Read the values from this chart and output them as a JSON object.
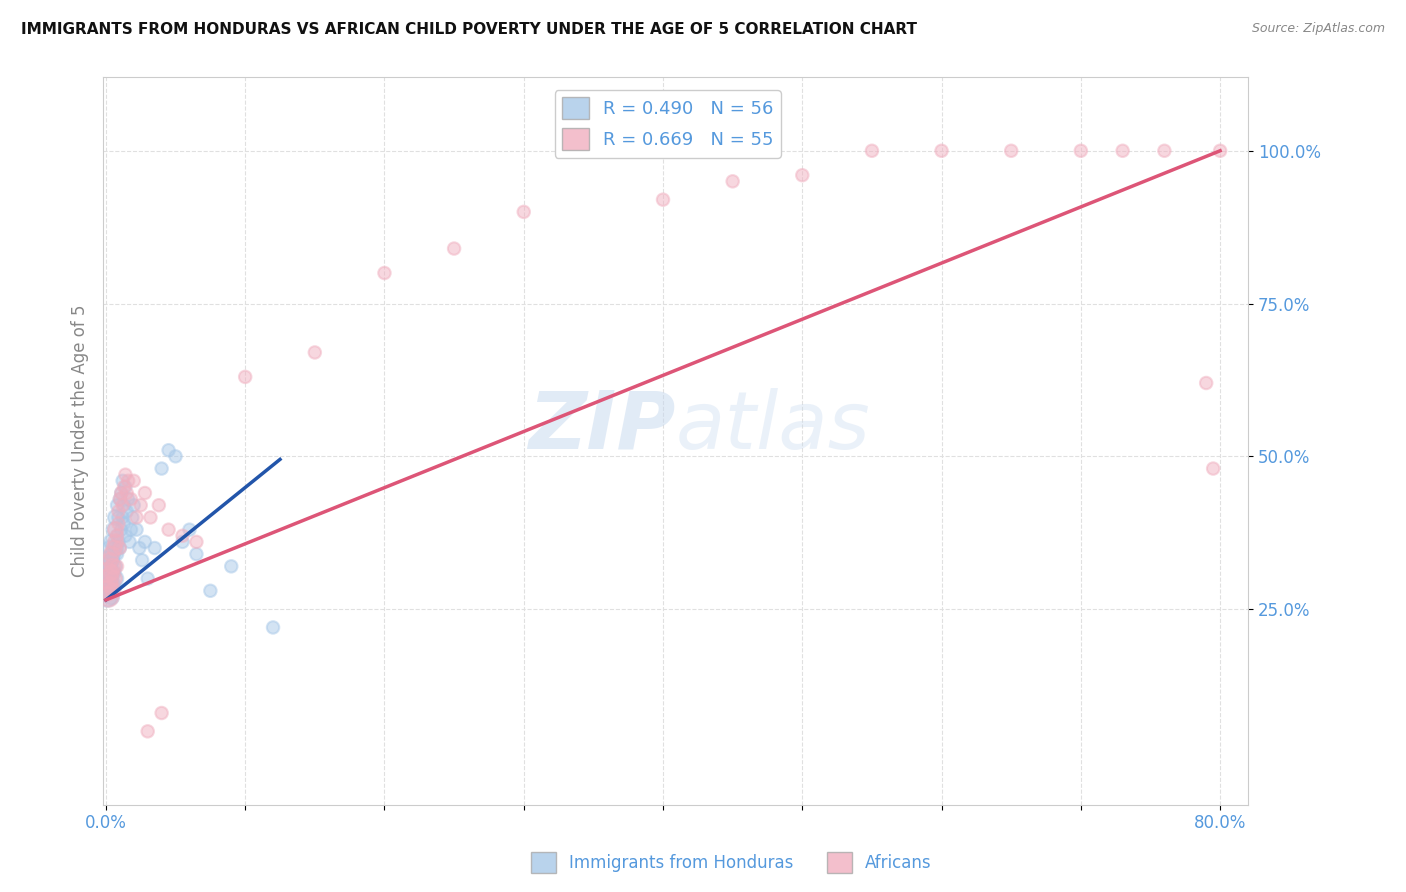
{
  "title": "IMMIGRANTS FROM HONDURAS VS AFRICAN CHILD POVERTY UNDER THE AGE OF 5 CORRELATION CHART",
  "source": "Source: ZipAtlas.com",
  "ylabel": "Child Poverty Under the Age of 5",
  "ytick_labels": [
    "25.0%",
    "50.0%",
    "75.0%",
    "100.0%"
  ],
  "ytick_values": [
    0.25,
    0.5,
    0.75,
    1.0
  ],
  "legend_series": [
    {
      "label": "R = 0.490   N = 56",
      "color": "#a8c8e8"
    },
    {
      "label": "R = 0.669   N = 55",
      "color": "#f0b0c0"
    }
  ],
  "legend_bottom": [
    {
      "label": "Immigrants from Honduras",
      "color": "#a8c8e8"
    },
    {
      "label": "Africans",
      "color": "#f0b0c0"
    }
  ],
  "watermark_zip": "ZIP",
  "watermark_atlas": "atlas",
  "blue_scatter_x": [
    0.001,
    0.001,
    0.001,
    0.002,
    0.002,
    0.002,
    0.003,
    0.003,
    0.003,
    0.004,
    0.004,
    0.004,
    0.005,
    0.005,
    0.005,
    0.006,
    0.006,
    0.007,
    0.007,
    0.007,
    0.008,
    0.008,
    0.008,
    0.009,
    0.009,
    0.01,
    0.01,
    0.011,
    0.011,
    0.012,
    0.012,
    0.013,
    0.013,
    0.014,
    0.014,
    0.015,
    0.016,
    0.017,
    0.018,
    0.019,
    0.02,
    0.022,
    0.024,
    0.026,
    0.028,
    0.03,
    0.035,
    0.04,
    0.045,
    0.05,
    0.055,
    0.06,
    0.065,
    0.075,
    0.09,
    0.12
  ],
  "blue_scatter_y": [
    0.3,
    0.32,
    0.27,
    0.29,
    0.31,
    0.33,
    0.28,
    0.3,
    0.35,
    0.27,
    0.33,
    0.36,
    0.29,
    0.31,
    0.34,
    0.32,
    0.38,
    0.3,
    0.35,
    0.4,
    0.34,
    0.37,
    0.42,
    0.36,
    0.4,
    0.35,
    0.43,
    0.38,
    0.44,
    0.4,
    0.46,
    0.39,
    0.42,
    0.37,
    0.45,
    0.41,
    0.43,
    0.36,
    0.38,
    0.4,
    0.42,
    0.38,
    0.35,
    0.33,
    0.36,
    0.3,
    0.35,
    0.48,
    0.51,
    0.5,
    0.36,
    0.38,
    0.34,
    0.28,
    0.32,
    0.22
  ],
  "pink_scatter_x": [
    0.001,
    0.001,
    0.002,
    0.002,
    0.003,
    0.003,
    0.004,
    0.004,
    0.005,
    0.005,
    0.006,
    0.006,
    0.007,
    0.007,
    0.008,
    0.008,
    0.009,
    0.009,
    0.01,
    0.01,
    0.011,
    0.012,
    0.013,
    0.014,
    0.015,
    0.016,
    0.018,
    0.02,
    0.022,
    0.025,
    0.028,
    0.032,
    0.038,
    0.045,
    0.055,
    0.065,
    0.1,
    0.15,
    0.2,
    0.25,
    0.3,
    0.4,
    0.45,
    0.5,
    0.55,
    0.6,
    0.65,
    0.7,
    0.73,
    0.76,
    0.79,
    0.795,
    0.8,
    0.03,
    0.04
  ],
  "pink_scatter_y": [
    0.28,
    0.31,
    0.27,
    0.3,
    0.29,
    0.33,
    0.31,
    0.34,
    0.28,
    0.32,
    0.35,
    0.3,
    0.36,
    0.38,
    0.32,
    0.37,
    0.39,
    0.41,
    0.35,
    0.43,
    0.44,
    0.42,
    0.45,
    0.47,
    0.44,
    0.46,
    0.43,
    0.46,
    0.4,
    0.42,
    0.44,
    0.4,
    0.42,
    0.38,
    0.37,
    0.36,
    0.63,
    0.67,
    0.8,
    0.84,
    0.9,
    0.92,
    0.95,
    0.96,
    1.0,
    1.0,
    1.0,
    1.0,
    1.0,
    1.0,
    0.62,
    0.48,
    1.0,
    0.05,
    0.08
  ],
  "blue_line_x": [
    0.0,
    0.125
  ],
  "blue_line_y": [
    0.265,
    0.495
  ],
  "pink_line_x": [
    0.0,
    0.8
  ],
  "pink_line_y": [
    0.265,
    1.0
  ],
  "dashed_line_x": [
    0.0,
    0.8
  ],
  "dashed_line_y": [
    0.265,
    1.0
  ],
  "xmin": -0.002,
  "xmax": 0.82,
  "ymin": -0.07,
  "ymax": 1.12,
  "blue_color": "#a8c8e8",
  "pink_color": "#f0b0c0",
  "blue_line_color": "#2255aa",
  "pink_line_color": "#dd5577",
  "dashed_line_color": "#99bfe0",
  "grid_color": "#e0e0e0",
  "axis_label_color": "#5599dd",
  "title_color": "#111111",
  "background_color": "#ffffff"
}
